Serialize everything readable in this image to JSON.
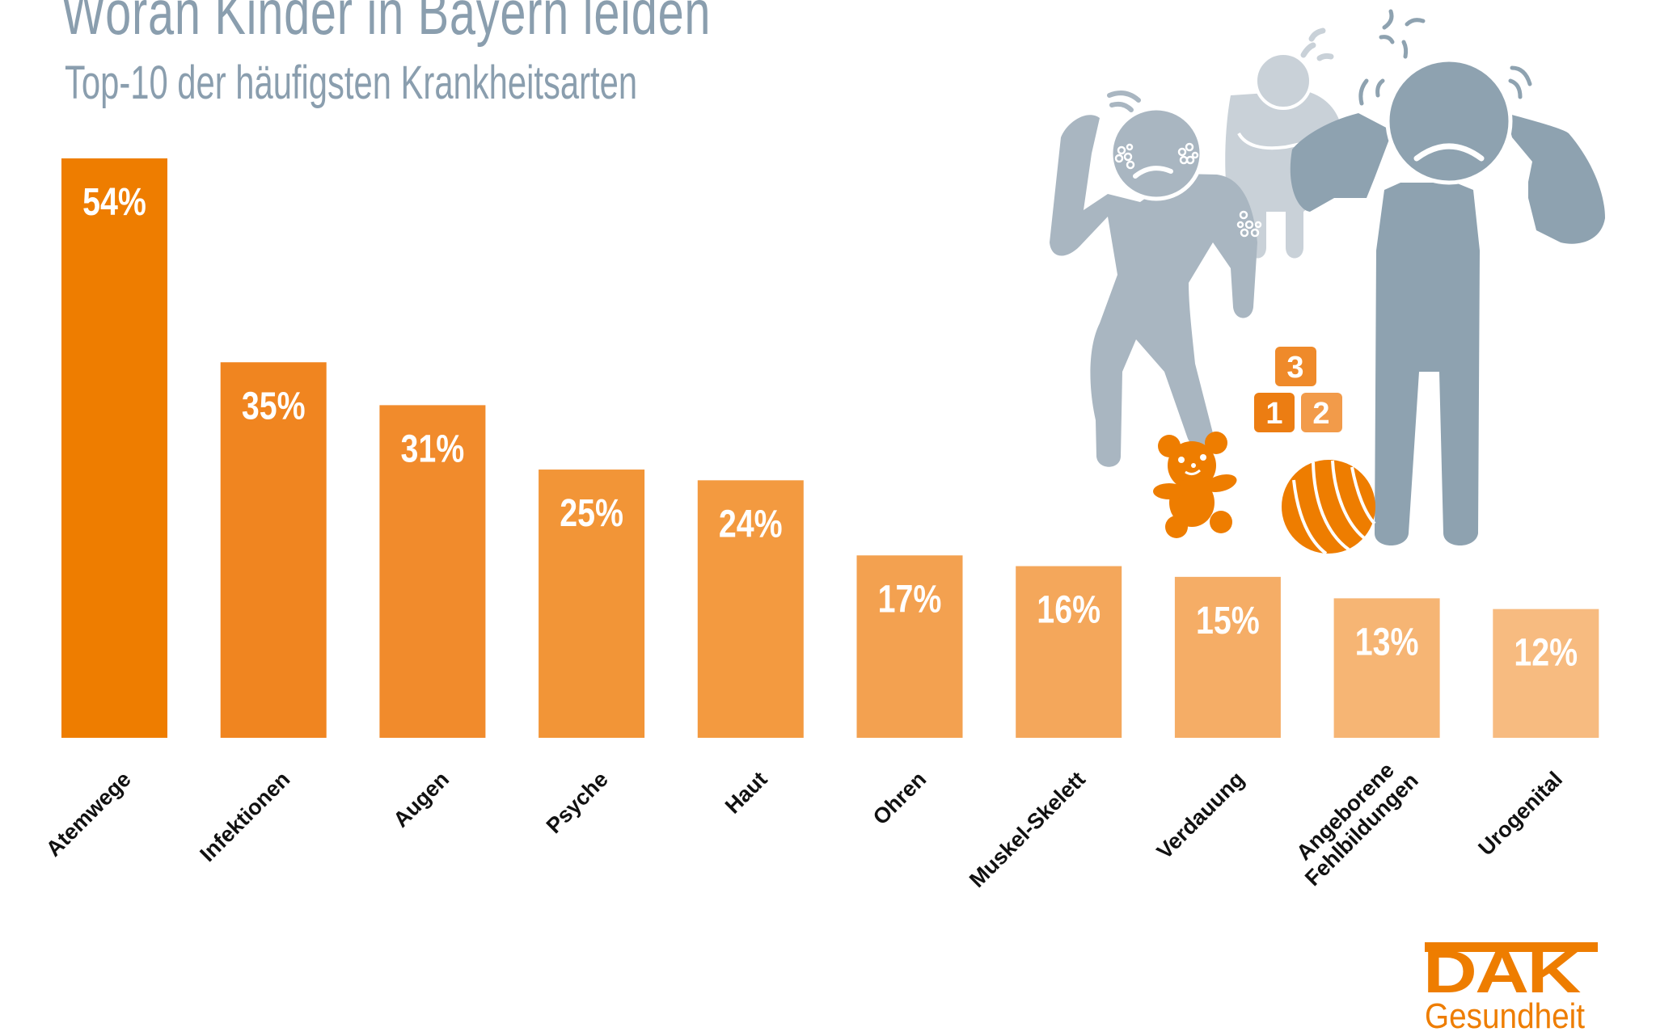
{
  "header": {
    "title": "Woran Kinder in Bayern leiden",
    "subtitle": "Top-10 der häufigsten Krankheitsarten"
  },
  "chart_data": {
    "type": "bar",
    "title": "Woran Kinder in Bayern leiden",
    "subtitle": "Top-10 der häufigsten Krankheitsarten",
    "xlabel": "",
    "ylabel": "",
    "ylim": [
      0,
      54
    ],
    "grid": false,
    "categories": [
      "Atemwege",
      "Infektionen",
      "Augen",
      "Psyche",
      "Haut",
      "Ohren",
      "Muskel-Skelett",
      "Verdauung",
      "Angeborene Fehlbildungen",
      "Urogenital"
    ],
    "category_lines": [
      [
        "Atemwege"
      ],
      [
        "Infektionen"
      ],
      [
        "Augen"
      ],
      [
        "Psyche"
      ],
      [
        "Haut"
      ],
      [
        "Ohren"
      ],
      [
        "Muskel-Skelett"
      ],
      [
        "Verdauung"
      ],
      [
        "Angeborene",
        "Fehlbildungen"
      ],
      [
        "Urogenital"
      ]
    ],
    "values": [
      54,
      35,
      31,
      25,
      24,
      17,
      16,
      15,
      13,
      12
    ],
    "value_labels": [
      "54%",
      "35%",
      "31%",
      "25%",
      "24%",
      "17%",
      "16%",
      "15%",
      "13%",
      "12%"
    ],
    "unit": "%",
    "colors": [
      "#ee7d00",
      "#f08520",
      "#f18b2c",
      "#f29537",
      "#f39a40",
      "#f3a150",
      "#f4a75b",
      "#f5ad66",
      "#f6b574",
      "#f7bb80"
    ]
  },
  "illustration": {
    "blocks": [
      "3",
      "1",
      "2"
    ],
    "figure_colors": {
      "left": "#a9b6c1",
      "middle": "#c9d1d8",
      "right": "#8ea2b0"
    },
    "toy_color": "#ee7d00"
  },
  "logo": {
    "brand": "DAK",
    "sub": "Gesundheit",
    "color": "#ee7d00"
  }
}
